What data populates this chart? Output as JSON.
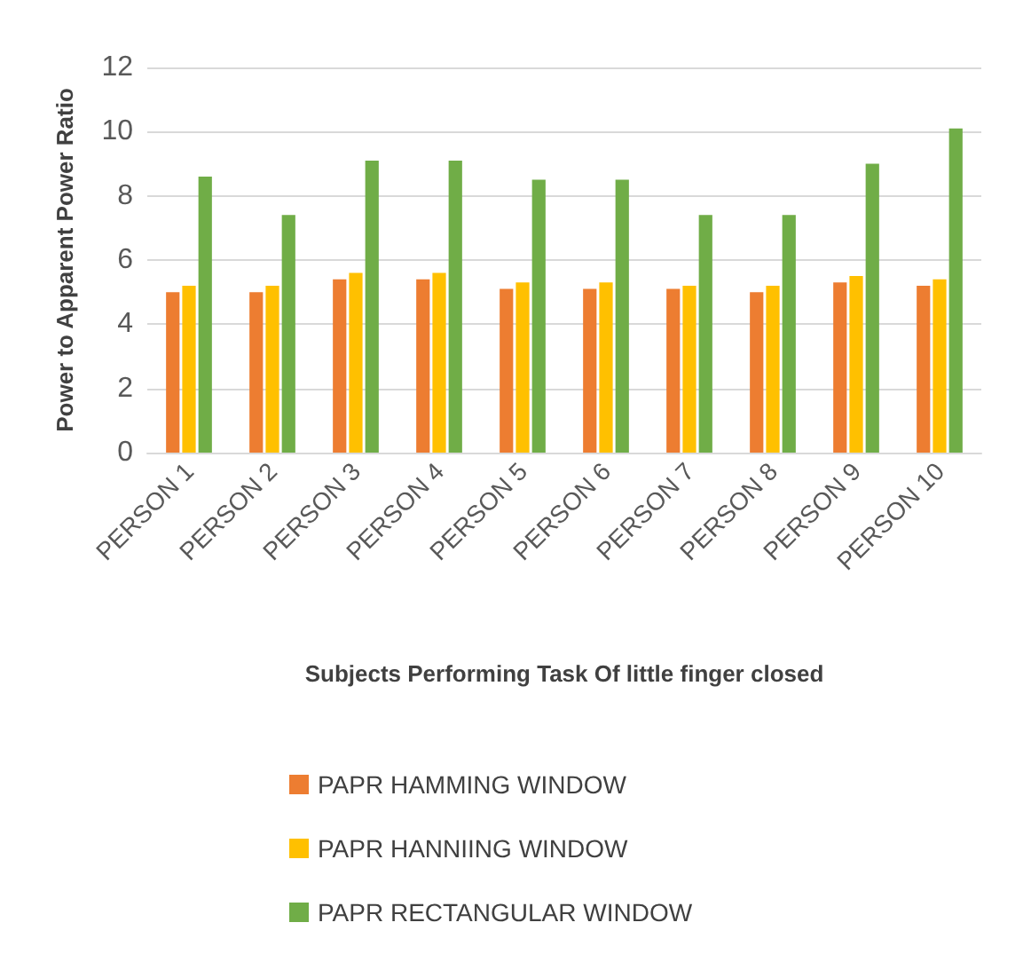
{
  "chart_data": {
    "type": "bar",
    "xlabel": "Subjects Performing Task Of little finger closed",
    "ylabel": "Power to Apparent Power Ratio",
    "categories": [
      "PERSON 1",
      "PERSON 2",
      "PERSON 3",
      "PERSON 4",
      "PERSON 5",
      "PERSON 6",
      "PERSON 7",
      "PERSON 8",
      "PERSON 9",
      "PERSON 10"
    ],
    "series": [
      {
        "name": "PAPR HAMMING WINDOW",
        "color": "#ed7d31",
        "values": [
          5.0,
          5.0,
          5.4,
          5.4,
          5.1,
          5.1,
          5.1,
          5.0,
          5.3,
          5.2
        ]
      },
      {
        "name": "PAPR HANNIING WINDOW",
        "color": "#ffc000",
        "values": [
          5.2,
          5.2,
          5.6,
          5.6,
          5.3,
          5.3,
          5.2,
          5.2,
          5.5,
          5.4
        ]
      },
      {
        "name": "PAPR RECTANGULAR WINDOW",
        "color": "#70ad47",
        "values": [
          8.6,
          7.4,
          9.1,
          9.1,
          8.5,
          8.5,
          7.4,
          7.4,
          9.0,
          10.1
        ]
      }
    ],
    "ylim": [
      0,
      12
    ],
    "yticks": [
      0,
      2,
      4,
      6,
      8,
      10,
      12
    ],
    "grid": "y",
    "legend": "bottom"
  }
}
